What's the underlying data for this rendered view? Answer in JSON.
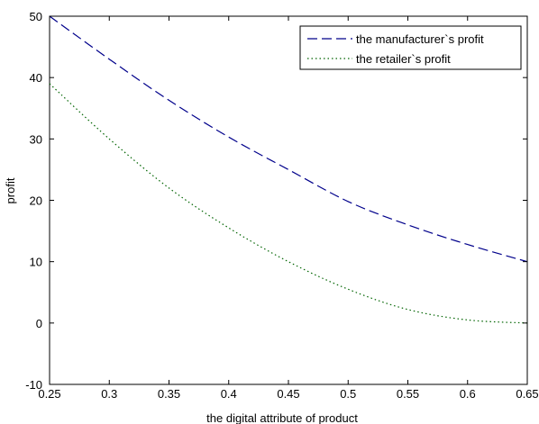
{
  "chart_data": {
    "type": "line",
    "title": "",
    "xlabel": "the digital attribute of product",
    "ylabel": "profit",
    "xlim": [
      0.25,
      0.65
    ],
    "ylim": [
      -10,
      50
    ],
    "xticks": [
      0.25,
      0.3,
      0.35,
      0.4,
      0.45,
      0.5,
      0.55,
      0.6,
      0.65
    ],
    "xtick_labels": [
      "0.25",
      "0.3",
      "0.35",
      "0.4",
      "0.45",
      "0.5",
      "0.55",
      "0.6",
      "0.65"
    ],
    "yticks": [
      -10,
      0,
      10,
      20,
      30,
      40,
      50
    ],
    "ytick_labels": [
      "-10",
      "0",
      "10",
      "20",
      "30",
      "40",
      "50"
    ],
    "grid": false,
    "legend": "top-right",
    "series": [
      {
        "name": "the manufacturer`s profit",
        "color": "#00008b",
        "style": "dashed",
        "x": [
          0.25,
          0.3,
          0.35,
          0.4,
          0.45,
          0.5,
          0.55,
          0.6,
          0.65
        ],
        "y": [
          50,
          43,
          36.3,
          30.3,
          25,
          19.8,
          16,
          12.8,
          10
        ]
      },
      {
        "name": "the retailer`s profit",
        "color": "#006400",
        "style": "dotted",
        "x": [
          0.25,
          0.3,
          0.35,
          0.4,
          0.45,
          0.5,
          0.55,
          0.6,
          0.65
        ],
        "y": [
          39,
          30,
          22,
          15.5,
          10,
          5.5,
          2.2,
          0.5,
          0
        ]
      }
    ]
  }
}
